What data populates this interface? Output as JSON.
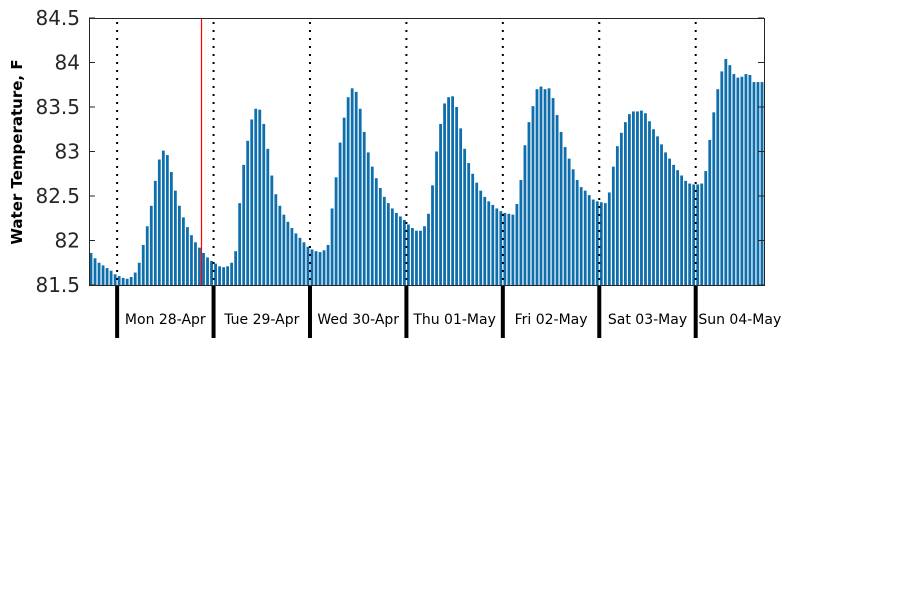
{
  "chart_data": {
    "type": "bar",
    "title": "",
    "xlabel": "",
    "ylabel": "Water Temperature, F",
    "ylim": [
      81.5,
      84.5
    ],
    "yticks": [
      81.5,
      82,
      82.5,
      83,
      83.5,
      84,
      84.5
    ],
    "ytick_labels": [
      "81.5",
      "82",
      "82.5",
      "83",
      "83.5",
      "84",
      "84.5"
    ],
    "grid": false,
    "bar_color": "#0f6fad",
    "marker_color": "#ff0000",
    "marker_index": 27.5,
    "day_boundary_indices": [
      6.5,
      30.5,
      54.5,
      78.5,
      102.5,
      126.5,
      150.5
    ],
    "day_labels": [
      "Mon 28-Apr",
      "Tue 29-Apr",
      "Wed 30-Apr",
      "Thu 01-May",
      "Fri 02-May",
      "Sat 03-May",
      "Sun 04-May"
    ],
    "x_count": 168,
    "values": [
      81.86,
      81.8,
      81.75,
      81.72,
      81.69,
      81.66,
      81.62,
      81.6,
      81.58,
      81.57,
      81.59,
      81.64,
      81.75,
      81.95,
      82.16,
      82.39,
      82.67,
      82.91,
      83.01,
      82.96,
      82.77,
      82.56,
      82.39,
      82.26,
      82.15,
      82.06,
      81.98,
      81.92,
      81.86,
      81.81,
      81.77,
      81.74,
      81.71,
      81.7,
      81.71,
      81.75,
      81.88,
      82.42,
      82.85,
      83.12,
      83.36,
      83.48,
      83.47,
      83.31,
      83.03,
      82.73,
      82.52,
      82.39,
      82.29,
      82.21,
      82.14,
      82.08,
      82.03,
      81.98,
      81.93,
      81.9,
      81.88,
      81.87,
      81.89,
      81.95,
      82.36,
      82.71,
      83.1,
      83.38,
      83.61,
      83.71,
      83.67,
      83.48,
      83.22,
      82.99,
      82.83,
      82.7,
      82.59,
      82.49,
      82.42,
      82.36,
      82.31,
      82.27,
      82.23,
      82.18,
      82.14,
      82.11,
      82.11,
      82.16,
      82.3,
      82.62,
      83.0,
      83.31,
      83.54,
      83.61,
      83.62,
      83.5,
      83.26,
      83.03,
      82.87,
      82.75,
      82.65,
      82.56,
      82.49,
      82.44,
      82.4,
      82.36,
      82.33,
      82.31,
      82.3,
      82.29,
      82.41,
      82.68,
      83.07,
      83.33,
      83.51,
      83.7,
      83.73,
      83.7,
      83.71,
      83.6,
      83.41,
      83.22,
      83.05,
      82.92,
      82.8,
      82.68,
      82.6,
      82.56,
      82.51,
      82.46,
      82.44,
      82.43,
      82.42,
      82.54,
      82.83,
      83.06,
      83.21,
      83.33,
      83.42,
      83.45,
      83.45,
      83.46,
      83.43,
      83.34,
      83.25,
      83.17,
      83.08,
      82.99,
      82.92,
      82.85,
      82.79,
      82.73,
      82.67,
      82.64,
      82.63,
      82.63,
      82.64,
      82.78,
      83.13,
      83.44,
      83.7,
      83.9,
      84.04,
      83.97,
      83.87,
      83.83,
      83.84,
      83.87,
      83.86,
      83.78,
      83.78,
      83.78
    ]
  }
}
